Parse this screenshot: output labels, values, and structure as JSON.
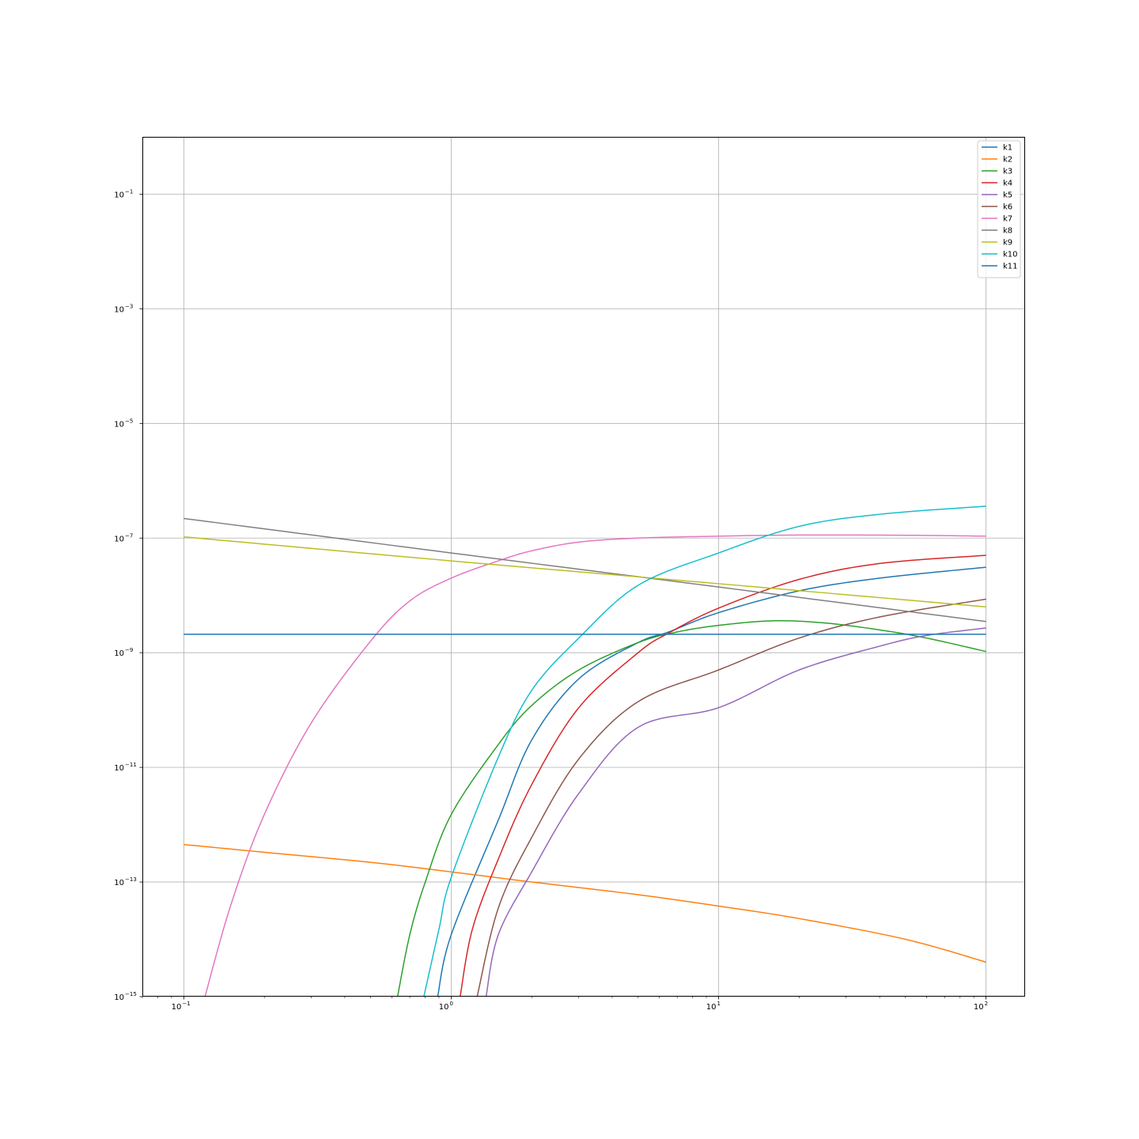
{
  "chart_data": {
    "type": "line",
    "title": "",
    "xlabel": "",
    "ylabel": "",
    "xscale": "log",
    "yscale": "log",
    "xlim": [
      0.07,
      140
    ],
    "ylim": [
      1e-15,
      1
    ],
    "grid": true,
    "legend_position": "top-right",
    "x_ticks": [
      {
        "base": "10",
        "exp": "−1"
      },
      {
        "base": "10",
        "exp": "0"
      },
      {
        "base": "10",
        "exp": "1"
      },
      {
        "base": "10",
        "exp": "2"
      }
    ],
    "y_ticks": [
      {
        "base": "10",
        "exp": "−15"
      },
      {
        "base": "10",
        "exp": "−13"
      },
      {
        "base": "10",
        "exp": "−11"
      },
      {
        "base": "10",
        "exp": "−9"
      },
      {
        "base": "10",
        "exp": "−7"
      },
      {
        "base": "10",
        "exp": "−5"
      },
      {
        "base": "10",
        "exp": "−3"
      },
      {
        "base": "10",
        "exp": "−1"
      }
    ],
    "series": [
      {
        "name": "k1",
        "color": "#1f77b4",
        "points": [
          [
            0.89,
            1e-15
          ],
          [
            1.0,
            1.2e-14
          ],
          [
            1.5,
            1.2e-12
          ],
          [
            2.0,
            3e-11
          ],
          [
            3.0,
            3.5e-10
          ],
          [
            5.0,
            1.5e-09
          ],
          [
            6.5,
            2.3e-09
          ],
          [
            10.0,
            5e-09
          ],
          [
            20.0,
            1.2e-08
          ],
          [
            40.0,
            2e-08
          ],
          [
            100.0,
            3.1e-08
          ]
        ]
      },
      {
        "name": "k2",
        "color": "#ff7f0e",
        "points": [
          [
            0.1,
            4.5e-13
          ],
          [
            0.2,
            3.3e-13
          ],
          [
            0.5,
            2.2e-13
          ],
          [
            1.0,
            1.5e-13
          ],
          [
            2.0,
            1e-13
          ],
          [
            5.0,
            6e-14
          ],
          [
            10.0,
            3.8e-14
          ],
          [
            20.0,
            2.3e-14
          ],
          [
            50.0,
            1e-14
          ],
          [
            100.0,
            4e-15
          ]
        ]
      },
      {
        "name": "k3",
        "color": "#2ca02c",
        "points": [
          [
            0.63,
            1e-15
          ],
          [
            0.7,
            1.2e-14
          ],
          [
            0.8,
            1e-13
          ],
          [
            1.0,
            1.5e-12
          ],
          [
            1.5,
            2.5e-11
          ],
          [
            2.0,
            1.2e-10
          ],
          [
            3.0,
            5e-10
          ],
          [
            5.0,
            1.5e-09
          ],
          [
            7.0,
            2.3e-09
          ],
          [
            10.0,
            3e-09
          ],
          [
            16.0,
            3.6e-09
          ],
          [
            25.0,
            3.3e-09
          ],
          [
            40.0,
            2.5e-09
          ],
          [
            60.0,
            1.8e-09
          ],
          [
            100.0,
            1.05e-09
          ]
        ]
      },
      {
        "name": "k4",
        "color": "#d62728",
        "points": [
          [
            1.08,
            1e-15
          ],
          [
            1.2,
            1.5e-14
          ],
          [
            1.5,
            2.5e-13
          ],
          [
            2.0,
            5e-12
          ],
          [
            3.0,
            1.1e-10
          ],
          [
            5.0,
            1e-09
          ],
          [
            6.5,
            2.2e-09
          ],
          [
            10.0,
            6e-09
          ],
          [
            20.0,
            1.9e-08
          ],
          [
            40.0,
            3.6e-08
          ],
          [
            100.0,
            5e-08
          ]
        ]
      },
      {
        "name": "k5",
        "color": "#9467bd",
        "points": [
          [
            1.35,
            1e-15
          ],
          [
            1.5,
            1.2e-14
          ],
          [
            2.0,
            1.5e-13
          ],
          [
            3.0,
            3.5e-12
          ],
          [
            5.0,
            5e-11
          ],
          [
            10.0,
            1.1e-10
          ],
          [
            20.0,
            5e-10
          ],
          [
            40.0,
            1.3e-09
          ],
          [
            60.0,
            2e-09
          ],
          [
            100.0,
            2.7e-09
          ]
        ]
      },
      {
        "name": "k6",
        "color": "#8c564b",
        "points": [
          [
            1.25,
            1e-15
          ],
          [
            1.5,
            3.5e-14
          ],
          [
            2.0,
            6e-13
          ],
          [
            3.0,
            1.4e-11
          ],
          [
            5.0,
            1.4e-10
          ],
          [
            10.0,
            5e-10
          ],
          [
            20.0,
            1.8e-09
          ],
          [
            40.0,
            4.2e-09
          ],
          [
            100.0,
            8.6e-09
          ]
        ]
      },
      {
        "name": "k7",
        "color": "#e377c2",
        "points": [
          [
            0.12,
            1e-15
          ],
          [
            0.15,
            4e-14
          ],
          [
            0.2,
            1.5e-12
          ],
          [
            0.3,
            6e-11
          ],
          [
            0.5,
            1.6e-09
          ],
          [
            0.7,
            8e-09
          ],
          [
            1.0,
            2e-08
          ],
          [
            1.5,
            4e-08
          ],
          [
            2.0,
            6e-08
          ],
          [
            3.0,
            8.5e-08
          ],
          [
            5.0,
            1e-07
          ],
          [
            10.0,
            1.08e-07
          ],
          [
            20.0,
            1.13e-07
          ],
          [
            50.0,
            1.12e-07
          ],
          [
            100.0,
            1.08e-07
          ]
        ]
      },
      {
        "name": "k8",
        "color": "#7f7f7f",
        "points": [
          [
            0.1,
            2.2e-07
          ],
          [
            1.0,
            5.5e-08
          ],
          [
            10.0,
            1.4e-08
          ],
          [
            100.0,
            3.5e-09
          ]
        ]
      },
      {
        "name": "k9",
        "color": "#bcbd22",
        "points": [
          [
            0.1,
            1.05e-07
          ],
          [
            1.0,
            4e-08
          ],
          [
            10.0,
            1.6e-08
          ],
          [
            100.0,
            6.3e-09
          ]
        ]
      },
      {
        "name": "k10",
        "color": "#17becf",
        "points": [
          [
            0.79,
            1e-15
          ],
          [
            0.9,
            1.5e-14
          ],
          [
            1.0,
            1.2e-13
          ],
          [
            1.5,
            1.5e-11
          ],
          [
            2.0,
            2.2e-10
          ],
          [
            3.0,
            1.8e-09
          ],
          [
            5.0,
            1.5e-08
          ],
          [
            10.0,
            5.5e-08
          ],
          [
            20.0,
            1.6e-07
          ],
          [
            40.0,
            2.6e-07
          ],
          [
            100.0,
            3.6e-07
          ]
        ]
      },
      {
        "name": "k11",
        "color": "#1f77b4",
        "points": [
          [
            0.1,
            2.1e-09
          ],
          [
            100.0,
            2.1e-09
          ]
        ]
      }
    ]
  }
}
